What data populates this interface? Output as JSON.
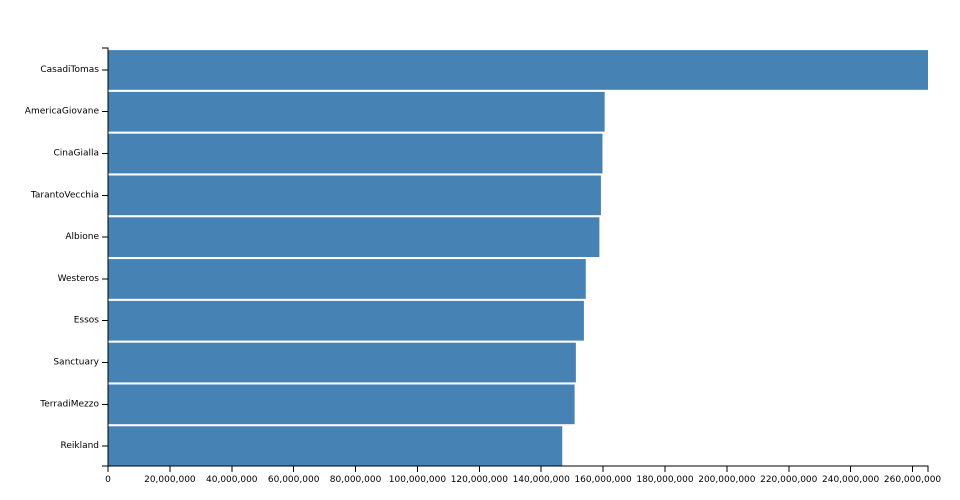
{
  "chart_data": {
    "type": "bar",
    "orientation": "horizontal",
    "title": "",
    "xlabel": "",
    "ylabel": "",
    "bar_color": "#4682b4",
    "xlim": [
      0,
      265000000
    ],
    "grid": false,
    "legend": "none",
    "categories": [
      "CasadiTomas",
      "AmericaGiovane",
      "CinaGialla",
      "TarantoVecchia",
      "Albione",
      "Westeros",
      "Essos",
      "Sanctuary",
      "TerradiMezzo",
      "Reikland"
    ],
    "values": [
      265000000,
      160500000,
      159800000,
      159300000,
      158800000,
      154400000,
      153800000,
      151200000,
      150800000,
      146800000
    ],
    "x_ticks": [
      0,
      20000000,
      40000000,
      60000000,
      80000000,
      100000000,
      120000000,
      140000000,
      160000000,
      180000000,
      200000000,
      220000000,
      240000000,
      260000000
    ],
    "x_tick_labels": [
      "0",
      "20,000,000",
      "40,000,000",
      "60,000,000",
      "80,000,000",
      "100,000,000",
      "120,000,000",
      "140,000,000",
      "160,000,000",
      "180,000,000",
      "200,000,000",
      "220,000,000",
      "240,000,000",
      "260,000,000"
    ]
  }
}
